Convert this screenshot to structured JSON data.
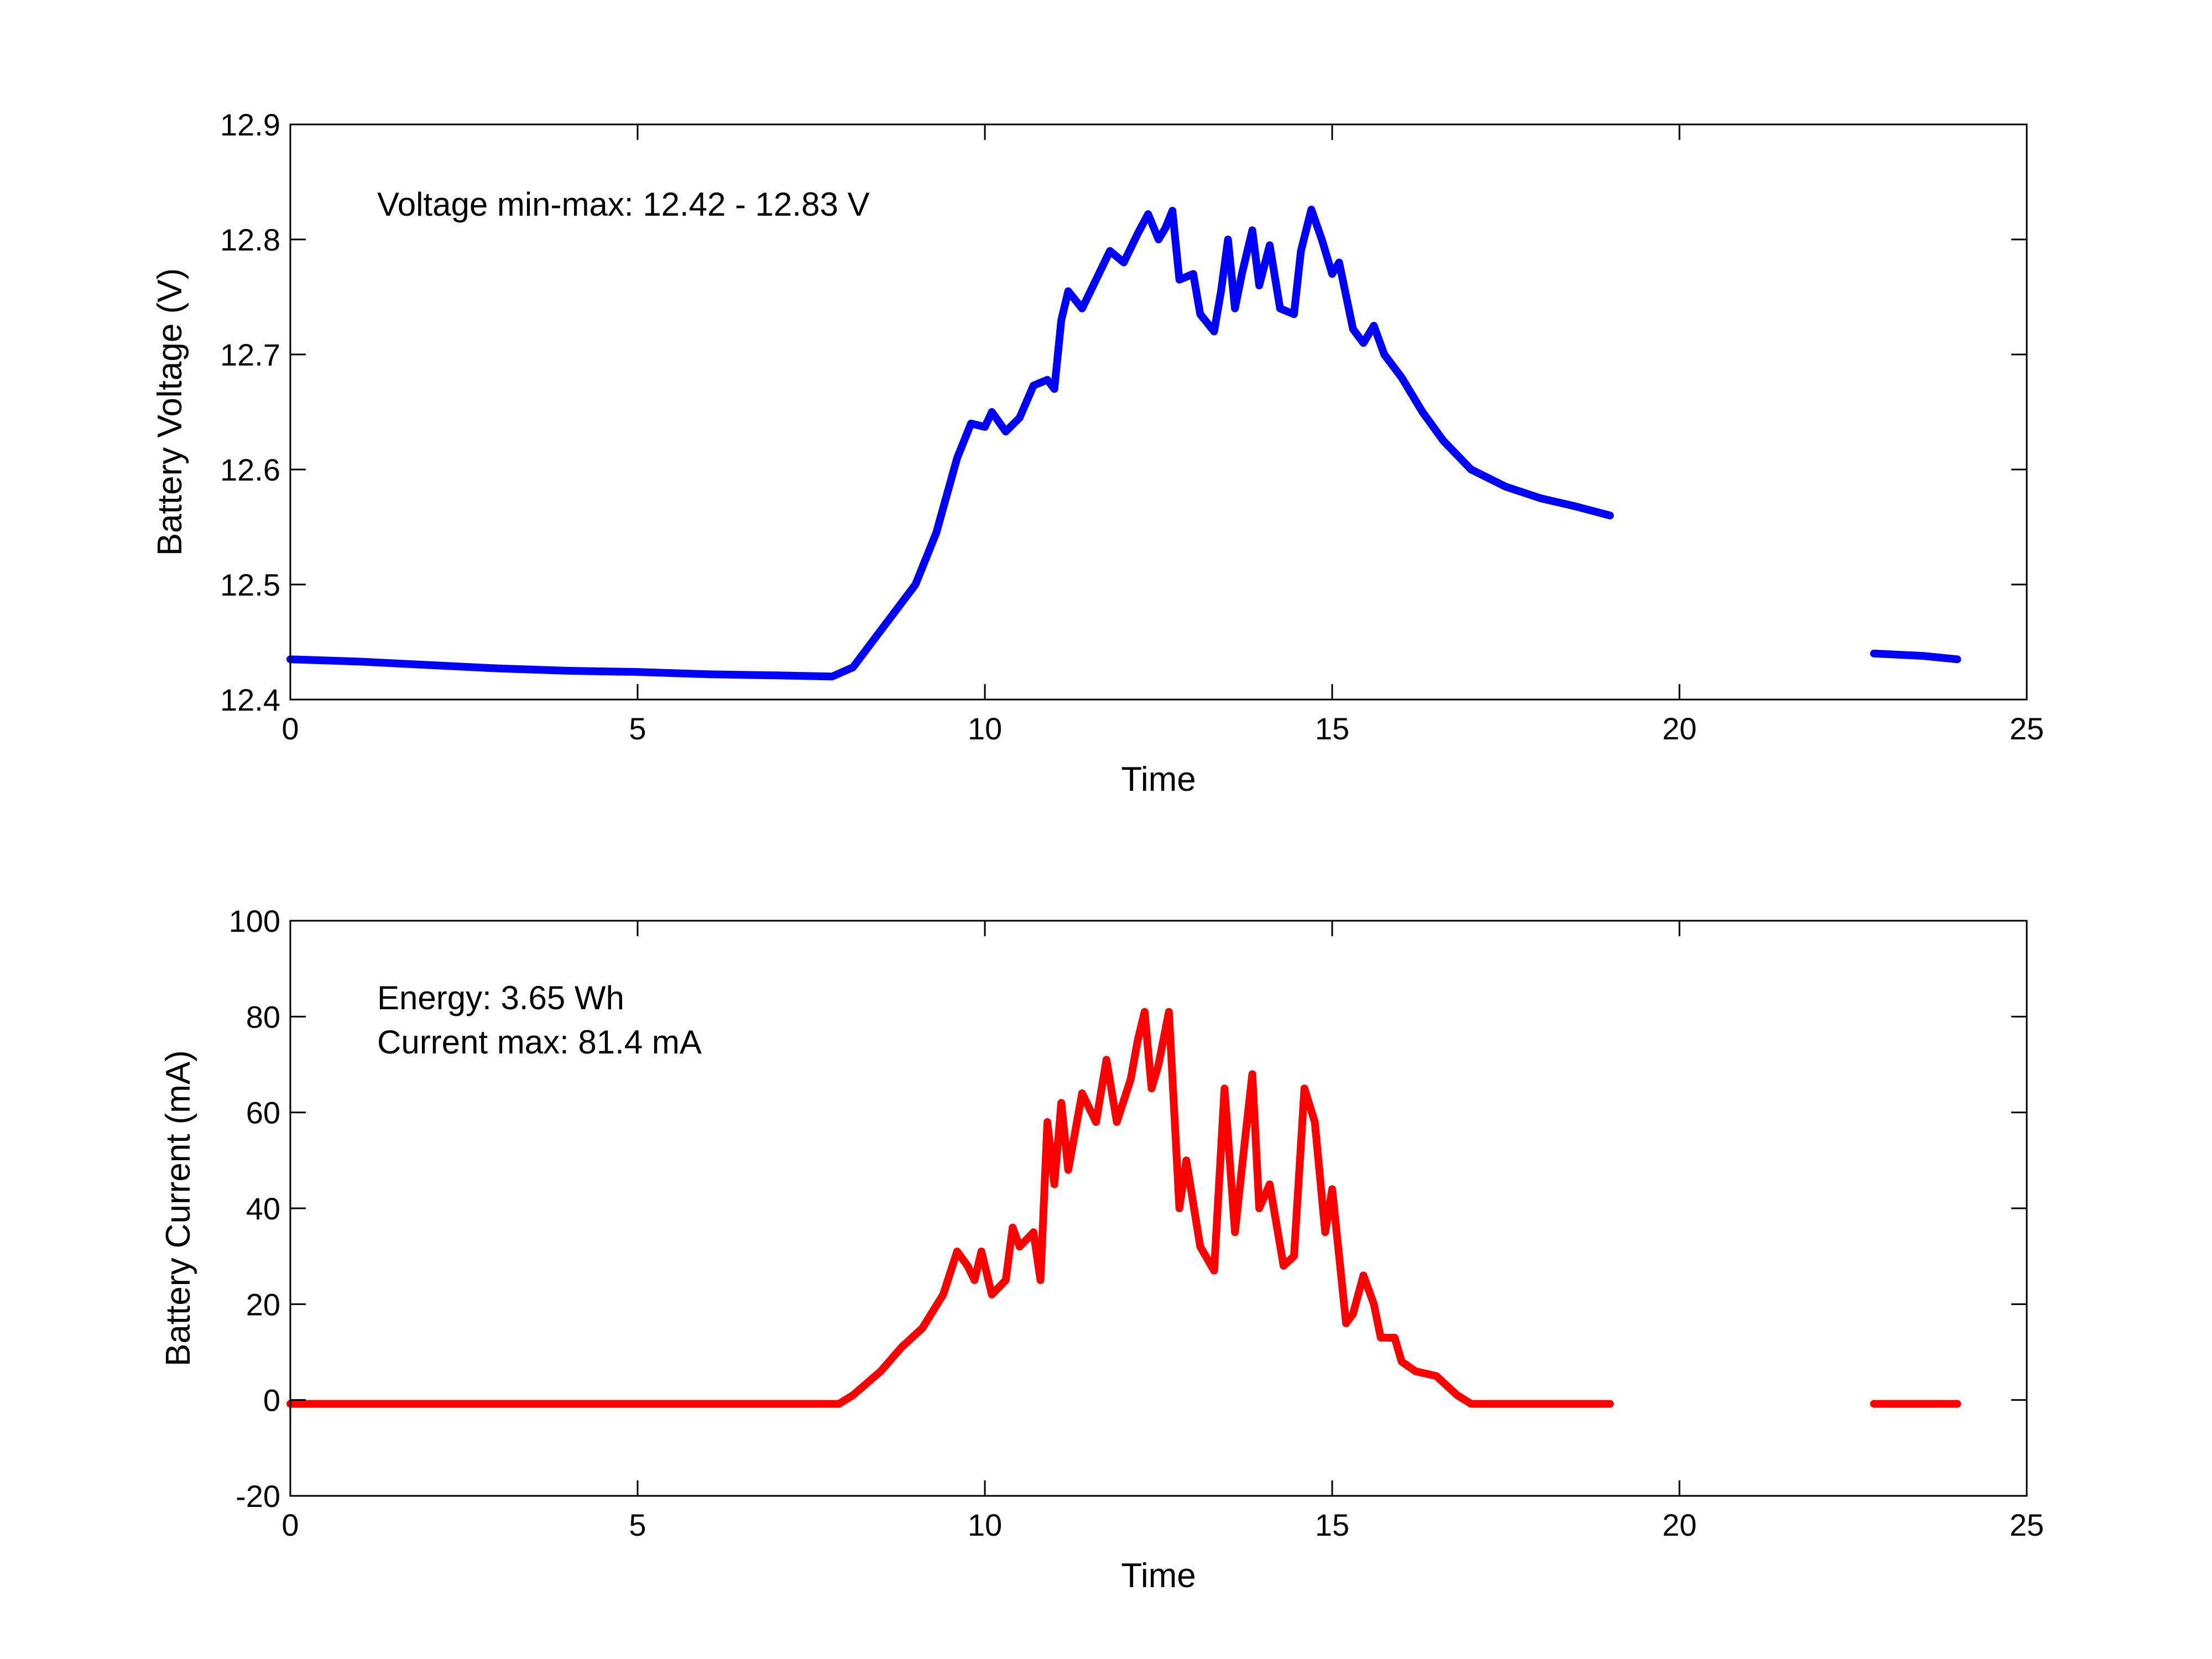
{
  "chart_data": [
    {
      "type": "line",
      "xlabel": "Time",
      "ylabel": "Battery Voltage (V)",
      "xlim": [
        0,
        25
      ],
      "ylim": [
        12.4,
        12.9
      ],
      "xticks": [
        "0",
        "5",
        "10",
        "15",
        "20",
        "25"
      ],
      "yticks": [
        "12.4",
        "12.5",
        "12.6",
        "12.7",
        "12.8",
        "12.9"
      ],
      "annotations": [
        "Voltage min-max: 12.42 - 12.83 V"
      ],
      "grid": false,
      "series": [
        {
          "color": "#0000ff",
          "segments": [
            [
              [
                0,
                12.435
              ],
              [
                1,
                12.433
              ],
              [
                2,
                12.43
              ],
              [
                3,
                12.427
              ],
              [
                4,
                12.425
              ],
              [
                5,
                12.424
              ],
              [
                6,
                12.422
              ],
              [
                7,
                12.421
              ],
              [
                7.8,
                12.42
              ],
              [
                8.1,
                12.428
              ],
              [
                8.5,
                12.46
              ],
              [
                9.0,
                12.5
              ],
              [
                9.3,
                12.545
              ],
              [
                9.6,
                12.61
              ],
              [
                9.8,
                12.64
              ],
              [
                10.0,
                12.637
              ],
              [
                10.1,
                12.65
              ],
              [
                10.3,
                12.633
              ],
              [
                10.5,
                12.645
              ],
              [
                10.7,
                12.673
              ],
              [
                10.9,
                12.678
              ],
              [
                11.0,
                12.67
              ],
              [
                11.1,
                12.73
              ],
              [
                11.2,
                12.755
              ],
              [
                11.4,
                12.74
              ],
              [
                11.6,
                12.765
              ],
              [
                11.8,
                12.79
              ],
              [
                12.0,
                12.78
              ],
              [
                12.2,
                12.805
              ],
              [
                12.35,
                12.822
              ],
              [
                12.5,
                12.8
              ],
              [
                12.6,
                12.81
              ],
              [
                12.7,
                12.825
              ],
              [
                12.8,
                12.765
              ],
              [
                13.0,
                12.77
              ],
              [
                13.1,
                12.735
              ],
              [
                13.3,
                12.72
              ],
              [
                13.4,
                12.755
              ],
              [
                13.5,
                12.8
              ],
              [
                13.6,
                12.74
              ],
              [
                13.7,
                12.77
              ],
              [
                13.85,
                12.808
              ],
              [
                13.95,
                12.76
              ],
              [
                14.1,
                12.795
              ],
              [
                14.25,
                12.74
              ],
              [
                14.45,
                12.735
              ],
              [
                14.55,
                12.79
              ],
              [
                14.7,
                12.826
              ],
              [
                14.85,
                12.8
              ],
              [
                15.0,
                12.77
              ],
              [
                15.1,
                12.78
              ],
              [
                15.3,
                12.722
              ],
              [
                15.45,
                12.71
              ],
              [
                15.6,
                12.725
              ],
              [
                15.75,
                12.7
              ],
              [
                16.0,
                12.68
              ],
              [
                16.3,
                12.65
              ],
              [
                16.6,
                12.625
              ],
              [
                17.0,
                12.6
              ],
              [
                17.5,
                12.585
              ],
              [
                18.0,
                12.575
              ],
              [
                18.5,
                12.568
              ],
              [
                19.0,
                12.56
              ]
            ],
            [
              [
                22.8,
                12.44
              ],
              [
                23.5,
                12.438
              ],
              [
                24.0,
                12.435
              ]
            ]
          ]
        }
      ]
    },
    {
      "type": "line",
      "xlabel": "Time",
      "ylabel": "Battery Current (mA)",
      "xlim": [
        0,
        25
      ],
      "ylim": [
        -20,
        100
      ],
      "xticks": [
        "0",
        "5",
        "10",
        "15",
        "20",
        "25"
      ],
      "yticks": [
        "-20",
        "0",
        "20",
        "40",
        "60",
        "80",
        "100"
      ],
      "annotations": [
        "Energy: 3.65 Wh",
        "Current max: 81.4 mA"
      ],
      "grid": false,
      "series": [
        {
          "color": "#ff0000",
          "segments": [
            [
              [
                0,
                -0.8
              ],
              [
                2,
                -0.8
              ],
              [
                4,
                -0.8
              ],
              [
                6,
                -0.8
              ],
              [
                7.9,
                -0.8
              ],
              [
                8.1,
                1
              ],
              [
                8.5,
                6
              ],
              [
                8.8,
                11
              ],
              [
                9.1,
                15
              ],
              [
                9.4,
                22
              ],
              [
                9.6,
                31
              ],
              [
                9.75,
                28
              ],
              [
                9.85,
                25
              ],
              [
                9.95,
                31
              ],
              [
                10.1,
                22
              ],
              [
                10.3,
                25
              ],
              [
                10.4,
                36
              ],
              [
                10.5,
                32
              ],
              [
                10.7,
                35
              ],
              [
                10.8,
                25
              ],
              [
                10.9,
                58
              ],
              [
                11.0,
                45
              ],
              [
                11.1,
                62
              ],
              [
                11.2,
                48
              ],
              [
                11.4,
                64
              ],
              [
                11.6,
                58
              ],
              [
                11.75,
                71
              ],
              [
                11.9,
                58
              ],
              [
                12.1,
                67
              ],
              [
                12.2,
                75
              ],
              [
                12.3,
                81
              ],
              [
                12.4,
                65
              ],
              [
                12.5,
                70
              ],
              [
                12.65,
                81
              ],
              [
                12.8,
                40
              ],
              [
                12.9,
                50
              ],
              [
                13.1,
                32
              ],
              [
                13.3,
                27
              ],
              [
                13.45,
                65
              ],
              [
                13.6,
                35
              ],
              [
                13.75,
                55
              ],
              [
                13.85,
                68
              ],
              [
                13.95,
                40
              ],
              [
                14.1,
                45
              ],
              [
                14.3,
                28
              ],
              [
                14.45,
                30
              ],
              [
                14.6,
                65
              ],
              [
                14.75,
                58
              ],
              [
                14.9,
                35
              ],
              [
                15.0,
                44
              ],
              [
                15.1,
                30
              ],
              [
                15.2,
                16
              ],
              [
                15.3,
                18
              ],
              [
                15.45,
                26
              ],
              [
                15.6,
                20
              ],
              [
                15.7,
                13
              ],
              [
                15.9,
                13
              ],
              [
                16.0,
                8
              ],
              [
                16.2,
                6
              ],
              [
                16.5,
                5
              ],
              [
                16.8,
                1
              ],
              [
                17.0,
                -0.8
              ],
              [
                18.0,
                -0.8
              ],
              [
                19.0,
                -0.8
              ]
            ],
            [
              [
                22.8,
                -0.8
              ],
              [
                23.5,
                -0.8
              ],
              [
                24.0,
                -0.8
              ]
            ]
          ]
        }
      ]
    }
  ]
}
